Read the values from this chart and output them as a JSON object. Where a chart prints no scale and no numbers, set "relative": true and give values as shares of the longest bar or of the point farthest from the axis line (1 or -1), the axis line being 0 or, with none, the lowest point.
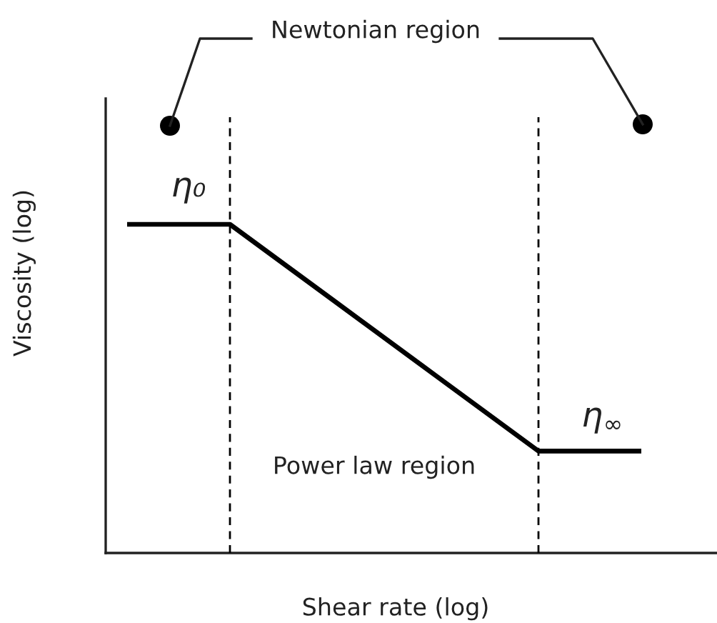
{
  "chart_data": {
    "type": "line",
    "relative": true,
    "xlabel": "Shear rate (log)",
    "ylabel": "Viscosity (log)",
    "categories": [
      null,
      null,
      null,
      null,
      null,
      null
    ],
    "series": [
      {
        "color": "#000000",
        "values": [
          1,
          1,
          0.77,
          0.54,
          0.31,
          0.31
        ]
      }
    ],
    "annotations": [
      "Newtonian region",
      "η₀",
      "η$_{∞}$",
      "Power law region"
    ]
  }
}
